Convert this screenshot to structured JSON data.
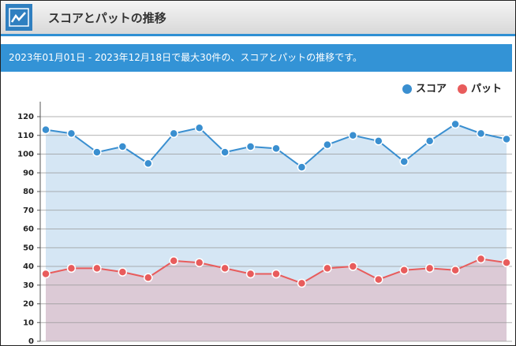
{
  "header": {
    "title": "スコアとパットの推移",
    "description": "2023年01月01日 - 2023年12月18日で最大30件の、スコアとパットの推移です。"
  },
  "chart_data": {
    "type": "area-line",
    "series": [
      {
        "name": "スコア",
        "color": "#3a8fd0",
        "fill": "#d5e6f4",
        "values": [
          113,
          111,
          101,
          104,
          95,
          111,
          114,
          101,
          104,
          103,
          93,
          105,
          110,
          107,
          96,
          107,
          116,
          111,
          108
        ]
      },
      {
        "name": "パット",
        "color": "#e85c5c",
        "fill": "#dccad6",
        "values": [
          36,
          39,
          39,
          37,
          34,
          43,
          42,
          39,
          36,
          36,
          31,
          39,
          40,
          33,
          38,
          39,
          38,
          44,
          42
        ]
      }
    ],
    "ylim": [
      0,
      128
    ],
    "yticks": [
      0,
      10,
      20,
      30,
      40,
      50,
      60,
      70,
      80,
      90,
      100,
      110,
      120
    ],
    "grid": true,
    "legend": "top-right"
  }
}
